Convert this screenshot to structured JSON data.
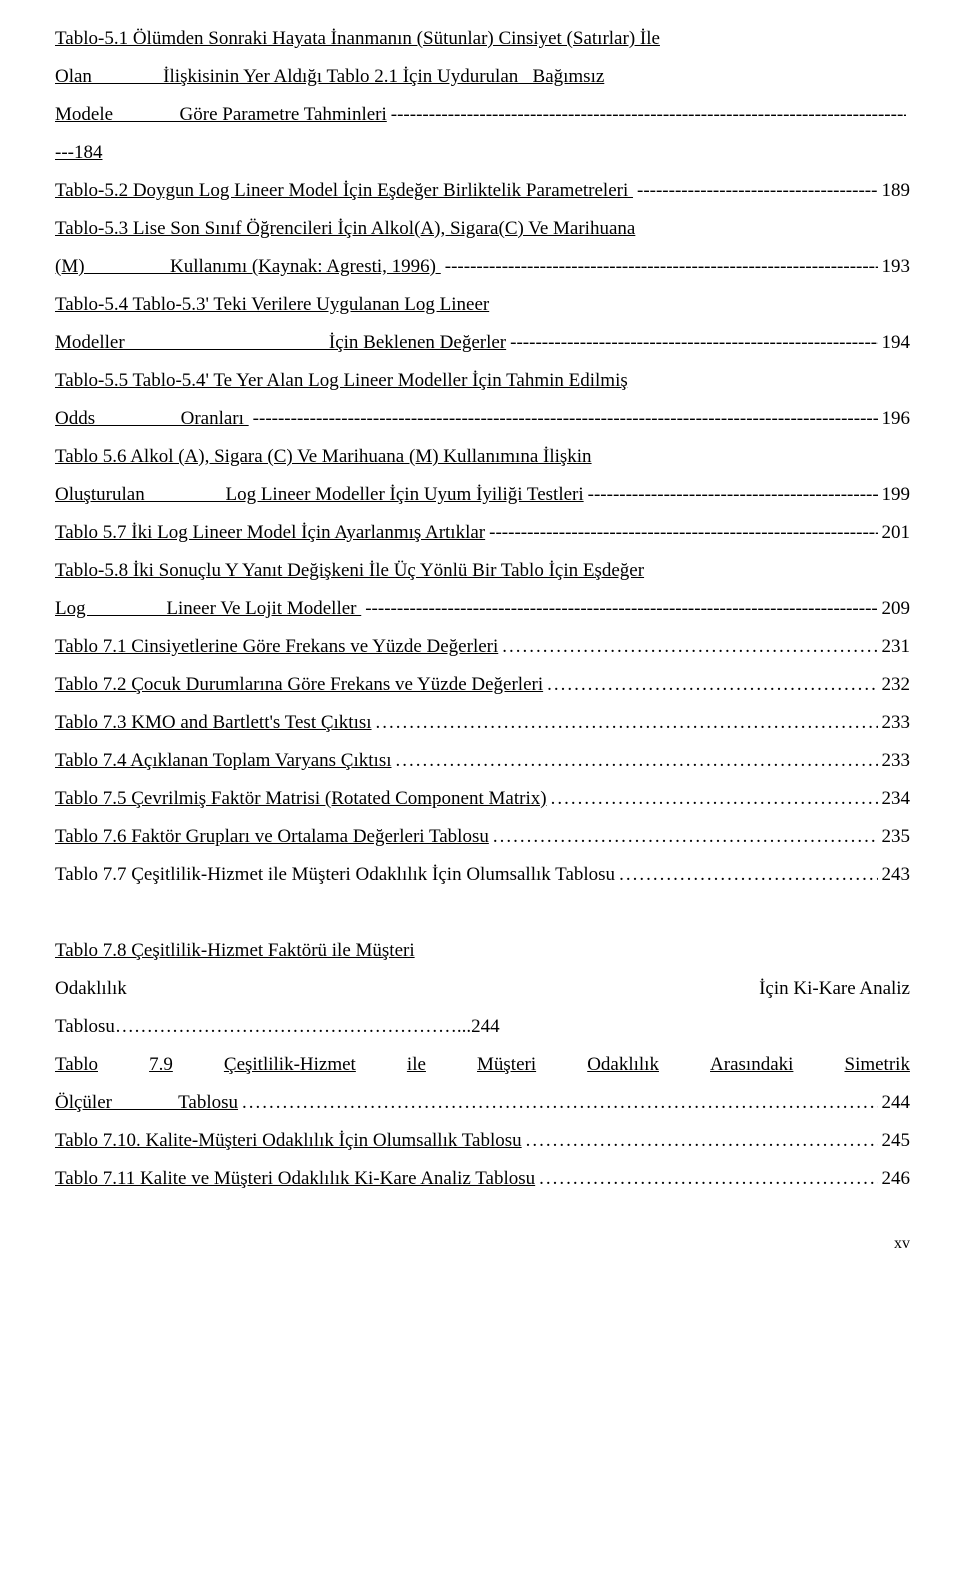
{
  "entries": [
    {
      "type": "multiline-dashes",
      "lines": [
        "Tablo-5.1 Ölümden Sonraki Hayata İnanmanın (Sütunlar) Cinsiyet (Satırlar) İle",
        "Olan               İlişkisinin Yer Aldığı Tablo 2.1 İçin Uydurulan   Bağımsız"
      ],
      "last_prefix": "Modele              Göre Parametre Tahminleri",
      "suffix": "",
      "page": "",
      "linked": true
    },
    {
      "type": "plain",
      "text": "---184",
      "linked": true
    },
    {
      "type": "dashes",
      "label": "Tablo-5.2 Doygun Log Lineer Model İçin Eşdeğer Birliktelik Parametreleri ",
      "page": "189",
      "linked": true
    },
    {
      "type": "multiline-dashes",
      "lines": [
        "Tablo-5.3 Lise Son Sınıf Öğrencileri İçin Alkol(A), Sigara(C) Ve Marihuana"
      ],
      "last_prefix": "(M)                  Kullanımı (Kaynak: Agresti, 1996) ",
      "page": "193",
      "linked": true
    },
    {
      "type": "multiline-dashes",
      "lines": [
        "Tablo-5.4 Tablo-5.3' Teki Verilere Uygulanan Log Lineer"
      ],
      "last_prefix": "Modeller                                           İçin Beklenen Değerler",
      "page": "194",
      "linked": true
    },
    {
      "type": "multiline-dashes",
      "lines": [
        "Tablo-5.5 Tablo-5.4' Te Yer Alan Log Lineer Modeller İçin Tahmin Edilmiş"
      ],
      "last_prefix": "Odds                  Oranları ",
      "page": "196",
      "linked": true
    },
    {
      "type": "multiline-dashes",
      "lines": [
        "Tablo 5.6 Alkol (A), Sigara (C) Ve Marihuana (M) Kullanımına İlişkin"
      ],
      "last_prefix": "Oluşturulan                 Log Lineer Modeller İçin Uyum İyiliği Testleri",
      "page": "199",
      "linked": true
    },
    {
      "type": "dashes",
      "label": "Tablo 5.7 İki Log Lineer Model İçin Ayarlanmış Artıklar",
      "page": "201",
      "linked": true
    },
    {
      "type": "multiline-dashes",
      "lines": [
        "Tablo-5.8 İki Sonuçlu Y Yanıt Değişkeni İle Üç Yönlü Bir Tablo İçin Eşdeğer"
      ],
      "last_prefix": "Log                 Lineer Ve Lojit Modeller ",
      "page": "209",
      "linked": true
    },
    {
      "type": "dots",
      "label": "Tablo 7.1 Cinsiyetlerine Göre Frekans ve Yüzde Değerleri",
      "page": "231",
      "linked": true
    },
    {
      "type": "dots",
      "label": "Tablo 7.2 Çocuk Durumlarına Göre Frekans ve Yüzde Değerleri",
      "page": "232",
      "linked": true
    },
    {
      "type": "dots",
      "label": "Tablo 7.3 KMO and Bartlett's Test Çıktısı",
      "page": "233",
      "linked": true
    },
    {
      "type": "dots",
      "label": "Tablo 7.4 Açıklanan Toplam Varyans Çıktısı",
      "page": "233",
      "linked": true
    },
    {
      "type": "dots",
      "label": "Tablo 7.5 Çevrilmiş Faktör Matrisi (Rotated Component Matrix)",
      "page": "234",
      "linked": true
    },
    {
      "type": "dots",
      "label": "Tablo 7.6 Faktör Grupları ve Ortalama Değerleri Tablosu",
      "page": "235",
      "linked": true
    },
    {
      "type": "dots",
      "label": "Tablo 7.7 Çeşitlilik-Hizmet ile Müşteri Odaklılık İçin Olumsallık Tablosu",
      "page": "243",
      "linked": false
    },
    {
      "type": "blank"
    },
    {
      "type": "plain-underline",
      "text": "Tablo 7.8 Çeşitlilik-Hizmet Faktörü ile Müşteri"
    },
    {
      "type": "justify",
      "left": "Odaklılık",
      "right": "İçin Ki-Kare Analiz"
    },
    {
      "type": "plain",
      "text": "Tablosu………………………………………………...244",
      "linked": false
    },
    {
      "type": "justify-multi",
      "text": "Tablo 7.9 Çeşitlilik-Hizmet ile Müşteri Odaklılık Arasındaki Simetrik",
      "linked": true
    },
    {
      "type": "dots",
      "label": "Ölçüler              Tablosu",
      "page": "244",
      "linked": true
    },
    {
      "type": "dots",
      "label": "Tablo 7.10. Kalite-Müşteri Odaklılık İçin Olumsallık Tablosu",
      "page": "245",
      "linked": true
    },
    {
      "type": "dots",
      "label": "Tablo 7.11 Kalite ve Müşteri Odaklılık Ki-Kare Analiz Tablosu",
      "page": "246",
      "linked": true
    }
  ],
  "footer": "xv"
}
